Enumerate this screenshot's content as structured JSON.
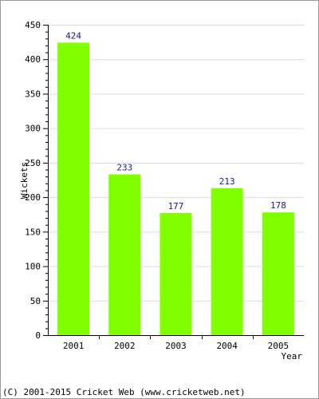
{
  "chart_data": {
    "type": "bar",
    "title": "",
    "xlabel": "Year",
    "ylabel": "Wickets",
    "categories": [
      "2001",
      "2002",
      "2003",
      "2004",
      "2005"
    ],
    "values": [
      424,
      233,
      177,
      213,
      178
    ],
    "value_labels": [
      "424",
      "233",
      "177",
      "213",
      "178"
    ],
    "ylim": [
      0,
      450
    ],
    "yticks": [
      0,
      50,
      100,
      150,
      200,
      250,
      300,
      350,
      400,
      450
    ],
    "ytick_labels": [
      "0",
      "50",
      "100",
      "150",
      "200",
      "250",
      "300",
      "350",
      "400",
      "450"
    ],
    "grid": true,
    "bar_color": "#80ff00",
    "label_color": "#1a1a8c"
  },
  "footer": {
    "text": "(C) 2001-2015 Cricket Web (www.cricketweb.net)"
  }
}
